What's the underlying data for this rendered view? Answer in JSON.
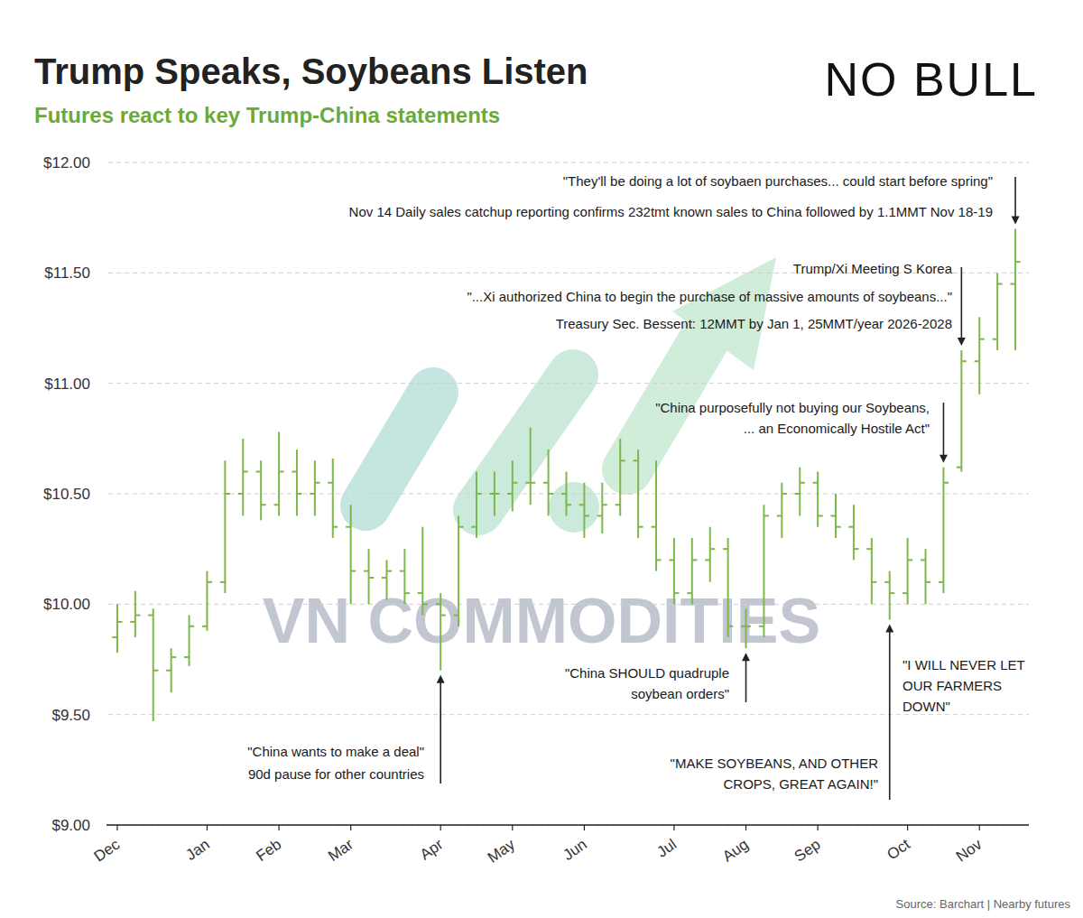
{
  "chart_data": {
    "type": "ohlc",
    "title": "Trump Speaks, Soybeans Listen",
    "subtitle": "Futures react to key Trump-China statements",
    "logo": "NO BULL",
    "watermark": "VN COMMODITIES",
    "source": "Source: Barchart | Nearby futures",
    "color": "#7db84a",
    "grid": true,
    "ylim": [
      9,
      12
    ],
    "yticks": [
      {
        "value": 9,
        "label": "$9.00"
      },
      {
        "value": 9.5,
        "label": "$9.50"
      },
      {
        "value": 10,
        "label": "$10.00"
      },
      {
        "value": 10.5,
        "label": "$10.50"
      },
      {
        "value": 11,
        "label": "$11.00"
      },
      {
        "value": 11.5,
        "label": "$11.50"
      },
      {
        "value": 12,
        "label": "$12.00"
      }
    ],
    "categories": [
      "Dec",
      null,
      null,
      null,
      null,
      "Jan",
      null,
      null,
      null,
      "Feb",
      null,
      null,
      null,
      "Mar",
      null,
      null,
      null,
      null,
      "Apr",
      null,
      null,
      null,
      "May",
      null,
      null,
      null,
      "Jun",
      null,
      null,
      null,
      null,
      "Jul",
      null,
      null,
      null,
      "Aug",
      null,
      null,
      null,
      "Sep",
      null,
      null,
      null,
      null,
      "Oct",
      null,
      null,
      null,
      "Nov",
      null,
      null
    ],
    "open": [
      9.85,
      9.92,
      9.95,
      9.7,
      9.76,
      9.9,
      10.1,
      10.5,
      10.6,
      10.45,
      10.6,
      10.5,
      10.55,
      10.35,
      10.15,
      10.12,
      10.15,
      10.05,
      10.0,
      9.95,
      10.35,
      10.5,
      10.5,
      10.55,
      10.55,
      10.5,
      10.45,
      10.4,
      10.45,
      10.65,
      10.35,
      10.2,
      10.05,
      10.2,
      10.25,
      9.9,
      9.9,
      10.4,
      10.5,
      10.55,
      10.4,
      10.35,
      10.25,
      10.1,
      10.05,
      10.2,
      10.1,
      10.62,
      11.1,
      11.2,
      11.45
    ],
    "high": [
      10.0,
      10.06,
      9.98,
      9.8,
      9.95,
      10.15,
      10.65,
      10.75,
      10.65,
      10.78,
      10.7,
      10.65,
      10.66,
      10.45,
      10.25,
      10.2,
      10.25,
      10.35,
      10.05,
      10.4,
      10.6,
      10.6,
      10.65,
      10.8,
      10.7,
      10.6,
      10.55,
      10.55,
      10.75,
      10.7,
      10.65,
      10.3,
      10.3,
      10.35,
      10.3,
      9.98,
      10.45,
      10.55,
      10.62,
      10.6,
      10.5,
      10.45,
      10.3,
      10.15,
      10.3,
      10.25,
      10.62,
      11.15,
      11.3,
      11.5,
      11.7
    ],
    "low": [
      9.78,
      9.85,
      9.47,
      9.6,
      9.72,
      9.88,
      10.05,
      10.4,
      10.38,
      10.4,
      10.4,
      10.4,
      10.3,
      10.0,
      10.0,
      10.02,
      10.0,
      9.95,
      9.7,
      9.9,
      10.3,
      10.4,
      10.42,
      10.45,
      10.4,
      10.4,
      10.3,
      10.32,
      10.4,
      10.3,
      10.15,
      10.0,
      10.0,
      10.1,
      9.85,
      9.8,
      9.85,
      10.3,
      10.4,
      10.35,
      10.3,
      10.2,
      10.0,
      9.93,
      10.0,
      10.0,
      10.05,
      10.6,
      10.95,
      11.15,
      11.15
    ],
    "close": [
      9.92,
      9.95,
      9.7,
      9.76,
      9.9,
      10.1,
      10.5,
      10.6,
      10.45,
      10.6,
      10.5,
      10.55,
      10.35,
      10.15,
      10.12,
      10.15,
      10.05,
      10.0,
      9.95,
      10.35,
      10.5,
      10.5,
      10.55,
      10.55,
      10.5,
      10.45,
      10.4,
      10.45,
      10.65,
      10.35,
      10.2,
      10.05,
      10.2,
      10.25,
      9.9,
      9.9,
      10.4,
      10.5,
      10.55,
      10.4,
      10.35,
      10.25,
      10.1,
      10.05,
      10.2,
      10.1,
      10.55,
      11.1,
      11.2,
      11.45,
      11.55
    ],
    "annotations": [
      {
        "lines": [
          "\"They'll be doing a lot of soybaen purchases... could start before spring\"",
          "Nov 14 Daily sales catchup reporting confirms 232tmt known sales to China followed by 1.1MMT Nov 18-19"
        ]
      },
      {
        "lines": [
          "Trump/Xi Meeting S Korea",
          "\"...Xi authorized China to begin the purchase of massive amounts of soybeans...\"",
          "Treasury Sec. Bessent: 12MMT by Jan 1, 25MMT/year 2026-2028"
        ]
      },
      {
        "lines": [
          "\"China purposefully not buying our Soybeans,",
          "... an Economically Hostile Act\""
        ]
      },
      {
        "lines": [
          "\"I WILL NEVER LET",
          "OUR FARMERS",
          "DOWN\""
        ]
      },
      {
        "lines": [
          "\"MAKE SOYBEANS, AND OTHER",
          "CROPS, GREAT AGAIN!\""
        ]
      },
      {
        "lines": [
          "\"China SHOULD quadruple",
          "soybean orders\""
        ]
      },
      {
        "lines": [
          "\"China wants to make a deal\"",
          "90d pause for other countries"
        ]
      }
    ]
  }
}
